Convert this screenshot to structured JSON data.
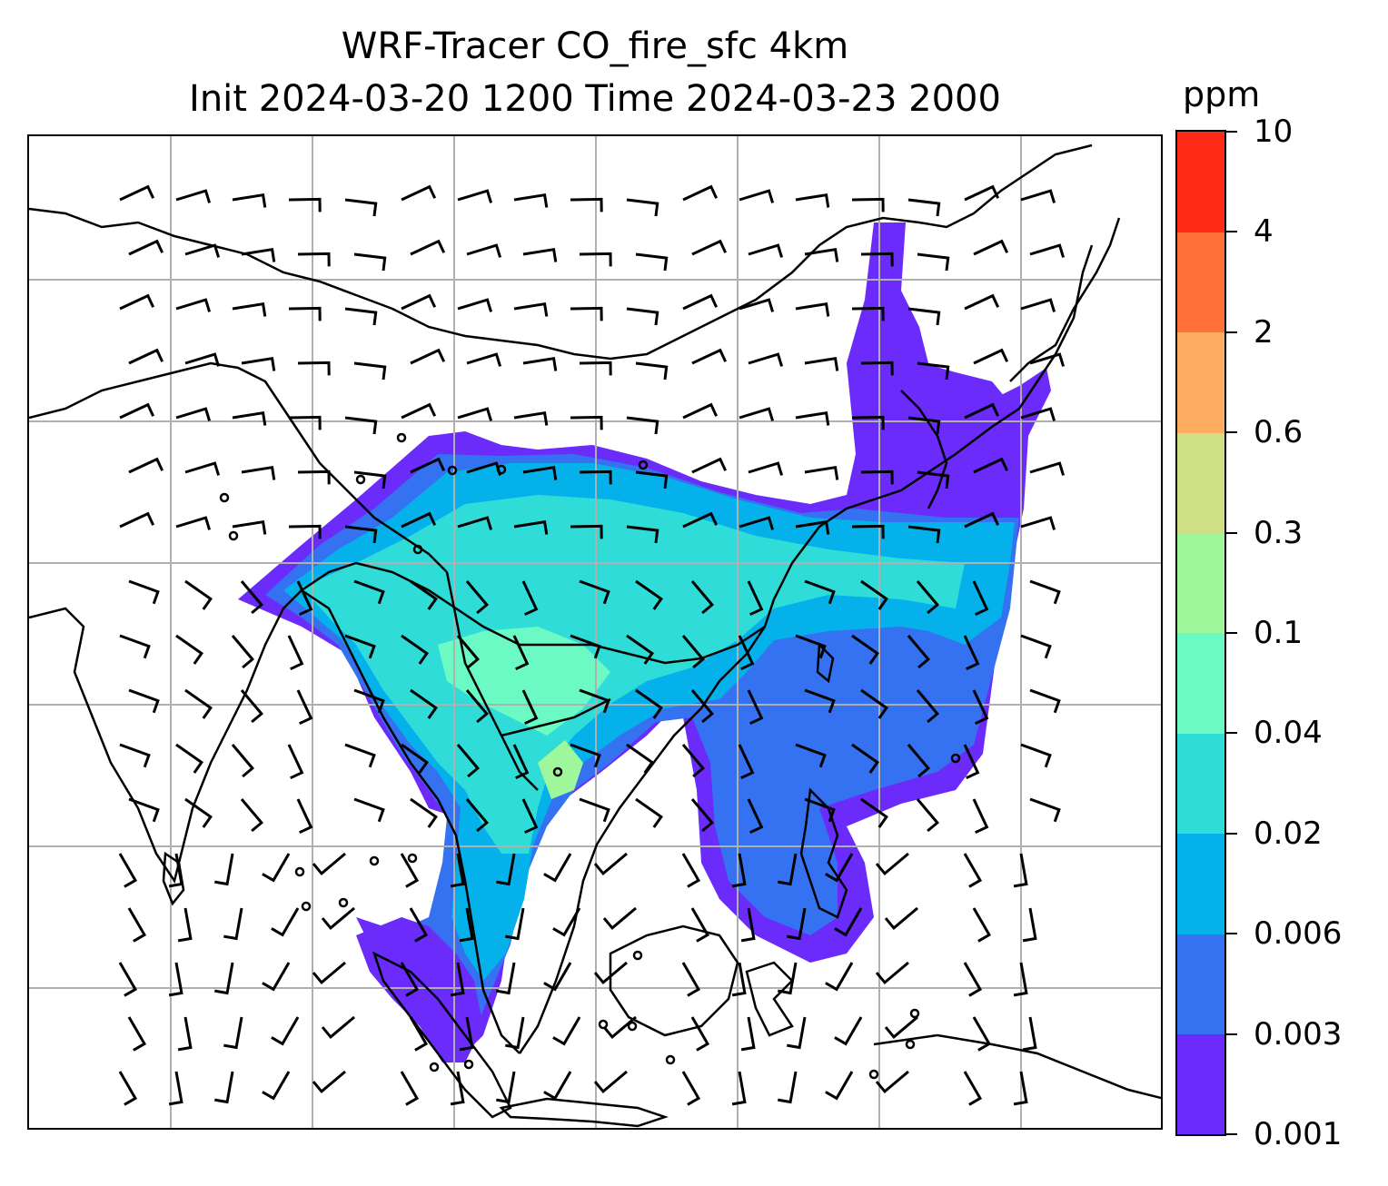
{
  "title": {
    "line1": "WRF-Tracer CO_fire_sfc 4km",
    "line2": "Init 2024-03-20 1200 Time 2024-03-23 2000"
  },
  "colorbar": {
    "unit": "ppm",
    "levels": [
      "0.001",
      "0.003",
      "0.006",
      "0.02",
      "0.04",
      "0.1",
      "0.3",
      "0.6",
      "2",
      "4",
      "10"
    ],
    "colors": [
      "#6a2bfb",
      "#3472f2",
      "#05b1ea",
      "#2fdcd8",
      "#6bfac4",
      "#9ef89b",
      "#cfe084",
      "#fdac62",
      "#ff7138",
      "#ff2a16"
    ]
  },
  "map": {
    "region": "South and Southeast Asia",
    "field": "CO_fire_sfc",
    "overlays": [
      "coastlines",
      "country-borders",
      "gridlines",
      "wind-barbs"
    ],
    "plume_colors": {
      "very_low": "#6a2bfb",
      "low": "#3472f2",
      "mid": "#05b1ea",
      "upper_mid": "#2fdcd8",
      "high": "#6bfac4",
      "peak": "#9ef89b"
    }
  }
}
